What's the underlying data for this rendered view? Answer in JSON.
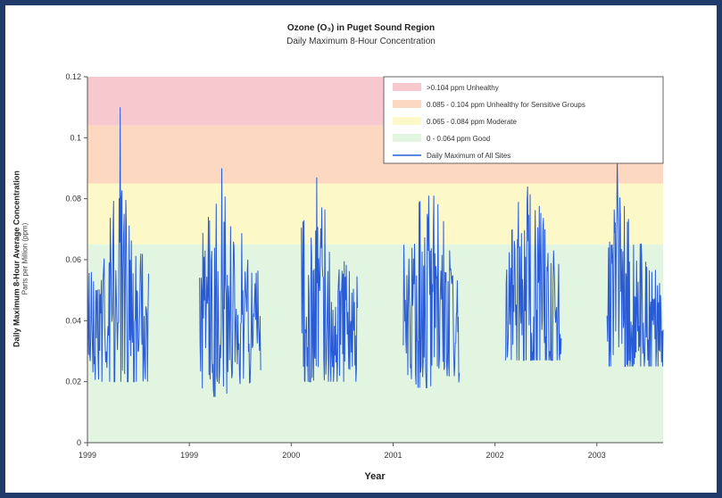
{
  "chart_data": {
    "type": "line",
    "title": "Ozone (O₃) in Puget Sound Region",
    "subtitle": "Daily Maximum 8-Hour Concentration",
    "ylabel": "Daily Maximum 8-Hour Average Concentration",
    "ylabel_sub": "Parts per Million (ppm)",
    "xlabel": "Year",
    "ylim": [
      0,
      0.12
    ],
    "yticks": [
      "0",
      "0.02",
      "0.04",
      "0.06",
      "0.08",
      "0.1",
      "0.12"
    ],
    "xticks": [
      "1999",
      "1999",
      "2000",
      "2001",
      "2002",
      "2003"
    ],
    "grid": false,
    "legend_position": "top-right",
    "bands": [
      {
        "label": ">0.104 ppm Unhealthy",
        "from": 0.104,
        "to": 0.12,
        "color": "#f7c9cf"
      },
      {
        "label": "0.085 - 0.104 ppm Unhealthy for Sensitive Groups",
        "from": 0.085,
        "to": 0.104,
        "color": "#fbd8bf"
      },
      {
        "label": "0.065 - 0.084 ppm Moderate",
        "from": 0.065,
        "to": 0.085,
        "color": "#fdf8c8"
      },
      {
        "label": "0 - 0.064 ppm Good",
        "from": 0,
        "to": 0.065,
        "color": "#e2f5e1"
      }
    ],
    "series": [
      {
        "name": "Daily Maximum of All Sites",
        "color": "#2a5bd7",
        "seasons": [
          {
            "x_start": 0.0,
            "x_end": 0.6,
            "min": 0.02,
            "max": 0.11,
            "peak_x": 0.32
          },
          {
            "x_start": 1.1,
            "x_end": 1.7,
            "min": 0.015,
            "max": 0.09,
            "peak_x": 1.32
          },
          {
            "x_start": 2.1,
            "x_end": 2.65,
            "min": 0.02,
            "max": 0.087,
            "peak_x": 2.25
          },
          {
            "x_start": 3.1,
            "x_end": 3.65,
            "min": 0.018,
            "max": 0.081,
            "peak_x": 3.35
          },
          {
            "x_start": 4.1,
            "x_end": 4.65,
            "min": 0.027,
            "max": 0.084,
            "peak_x": 4.32
          },
          {
            "x_start": 5.1,
            "x_end": 5.65,
            "min": 0.025,
            "max": 0.093,
            "peak_x": 5.2
          }
        ]
      }
    ]
  }
}
